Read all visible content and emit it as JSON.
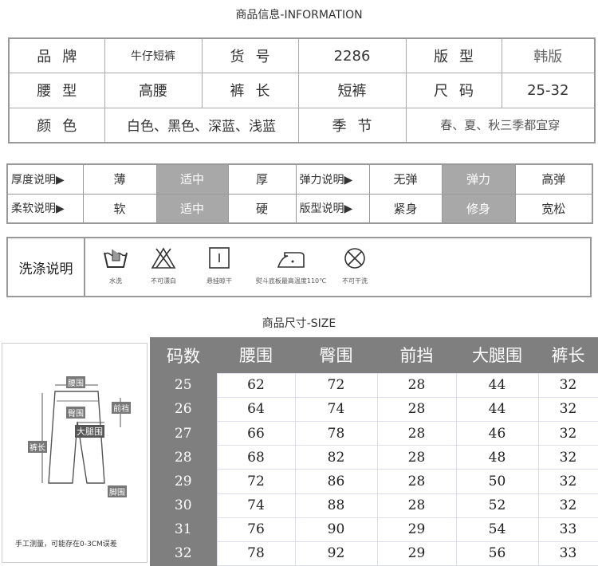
{
  "info_title": "商品信息-INFORMATION",
  "info": [
    [
      "品牌",
      "牛仔短裤",
      "货号",
      "2286",
      "版型",
      "韩版"
    ],
    [
      "腰型",
      "高腰",
      "裤长",
      "短裤",
      "尺码",
      "25-32"
    ],
    [
      "颜色",
      "白色、黑色、深蓝、浅蓝",
      "季节",
      "春、夏、秋三季都宜穿"
    ]
  ],
  "attributes": [
    {
      "label": "厚度说明▶",
      "options": [
        "薄",
        "适中",
        "厚"
      ],
      "selected": 1,
      "label2": "弹力说明▶",
      "options2": [
        "无弹",
        "弹力",
        "高弹"
      ],
      "selected2": 1
    },
    {
      "label": "柔软说明▶",
      "options": [
        "软",
        "适中",
        "硬"
      ],
      "selected": 1,
      "label2": "版型说明▶",
      "options2": [
        "紧身",
        "修身",
        "宽松"
      ],
      "selected2": 1
    }
  ],
  "wash": {
    "label": "洗涤说明",
    "items": [
      {
        "icon": "hand-wash-icon",
        "text": "水洗"
      },
      {
        "icon": "no-bleach-icon",
        "text": "不可漂白"
      },
      {
        "icon": "hang-dry-icon",
        "text": "悬挂晾干"
      },
      {
        "icon": "iron-icon",
        "text": "熨斗底板最高温度110℃"
      },
      {
        "icon": "no-dry-clean-icon",
        "text": "不可干洗"
      }
    ]
  },
  "size_title": "商品尺寸-SIZE",
  "diagram": {
    "labels": [
      "腰围",
      "臀围",
      "前裆",
      "大腿围",
      "裤长",
      "脚围"
    ],
    "note": "手工测量，可能存在0-3CM误差"
  },
  "size_table": {
    "headers": [
      "码数",
      "腰围",
      "臀围",
      "前挡",
      "大腿围",
      "裤长"
    ],
    "rows": [
      [
        "25",
        "62",
        "72",
        "28",
        "44",
        "32"
      ],
      [
        "26",
        "64",
        "74",
        "28",
        "44",
        "32"
      ],
      [
        "27",
        "66",
        "78",
        "28",
        "46",
        "32"
      ],
      [
        "28",
        "68",
        "82",
        "28",
        "48",
        "32"
      ],
      [
        "29",
        "72",
        "86",
        "28",
        "50",
        "32"
      ],
      [
        "30",
        "74",
        "88",
        "28",
        "52",
        "32"
      ],
      [
        "31",
        "76",
        "90",
        "29",
        "54",
        "33"
      ],
      [
        "32",
        "78",
        "92",
        "29",
        "56",
        "33"
      ]
    ]
  },
  "colors": {
    "highlight": "#a8a8a8",
    "table_header": "#7f7f7f"
  }
}
